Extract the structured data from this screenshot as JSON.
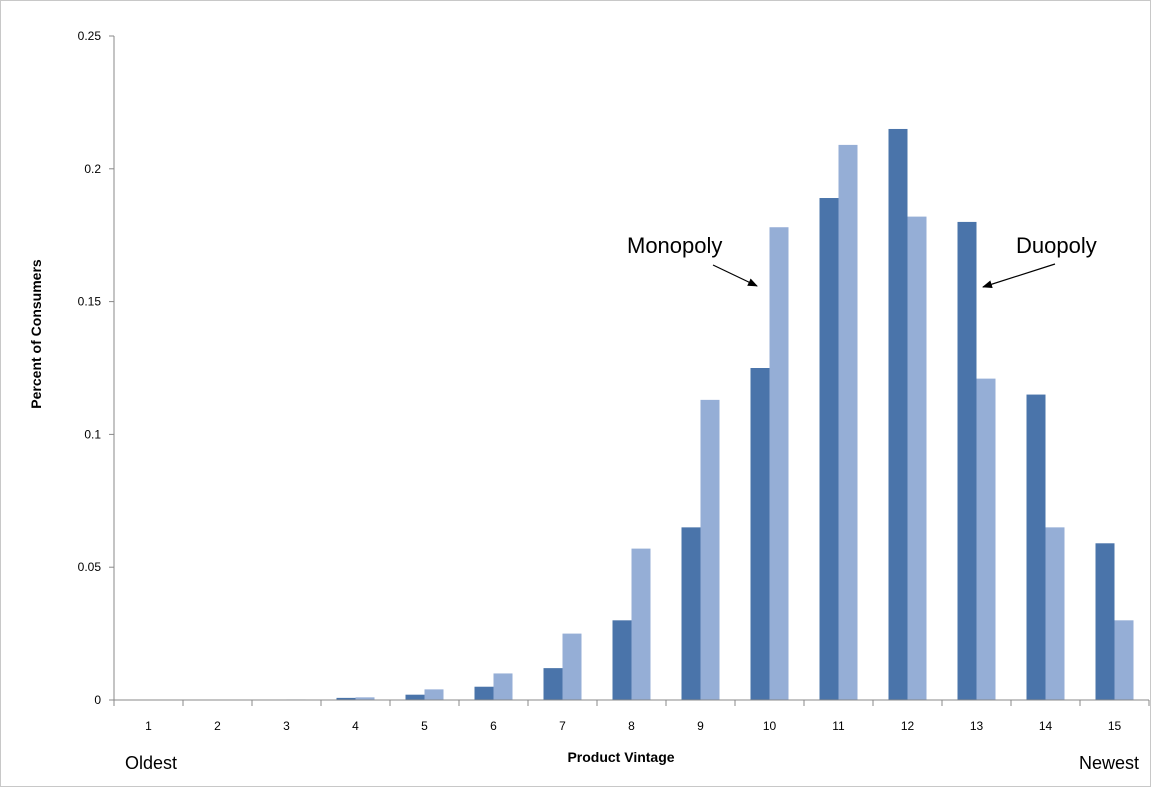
{
  "chart_data": {
    "type": "bar",
    "categories": [
      "1",
      "2",
      "3",
      "4",
      "5",
      "6",
      "7",
      "8",
      "9",
      "10",
      "11",
      "12",
      "13",
      "14",
      "15"
    ],
    "series": [
      {
        "name": "Duopoly",
        "color": "#4a74aa",
        "values": [
          0,
          0,
          0,
          0.0008,
          0.002,
          0.005,
          0.012,
          0.03,
          0.065,
          0.125,
          0.189,
          0.215,
          0.18,
          0.115,
          0.059
        ]
      },
      {
        "name": "Monopoly",
        "color": "#95aed6",
        "values": [
          0,
          0,
          0.0002,
          0.001,
          0.004,
          0.01,
          0.025,
          0.057,
          0.113,
          0.178,
          0.209,
          0.182,
          0.121,
          0.065,
          0.03
        ]
      }
    ],
    "yticks": [
      "0",
      "0.05",
      "0.1",
      "0.15",
      "0.2",
      "0.25"
    ],
    "ylim": [
      0,
      0.25
    ],
    "xlabel": "Product Vintage",
    "ylabel": "Percent of Consumers",
    "grid": false,
    "annotations": [
      {
        "text": "Monopoly",
        "points_to_series": "Monopoly",
        "category": "10"
      },
      {
        "text": "Duopoly",
        "points_to_series": "Duopoly",
        "category": "13"
      }
    ],
    "end_labels": {
      "left": "Oldest",
      "right": "Newest"
    }
  }
}
